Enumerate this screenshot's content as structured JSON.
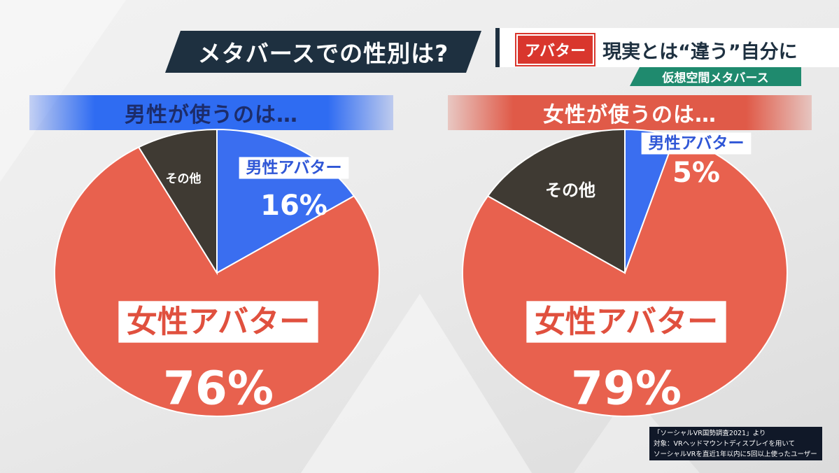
{
  "header": {
    "main_title": "メタバースでの性別は?",
    "topic_tag": "アバター",
    "topic_text": "現実とは“違う”自分に",
    "sub_topic": "仮想空間メタバース"
  },
  "chart_data": [
    {
      "type": "pie",
      "title": "男性が使うのは…",
      "slices": [
        {
          "label": "男性アバター",
          "value": 16,
          "value_label": "16%",
          "color": "#3a6ef0"
        },
        {
          "label": "女性アバター",
          "value": 76,
          "value_label": "76%",
          "color": "#e8614e"
        },
        {
          "label": "その他",
          "value": 8,
          "value_label": "",
          "color": "#3f3a33"
        }
      ]
    },
    {
      "type": "pie",
      "title": "女性が使うのは…",
      "slices": [
        {
          "label": "男性アバター",
          "value": 5,
          "value_label": "5%",
          "color": "#3a6ef0"
        },
        {
          "label": "女性アバター",
          "value": 79,
          "value_label": "79%",
          "color": "#e8614e"
        },
        {
          "label": "その他",
          "value": 16,
          "value_label": "",
          "color": "#3f3a33"
        }
      ]
    }
  ],
  "source": {
    "line1": "「ソーシャルVR国勢調査2021」より",
    "line2": "対象：VRヘッドマウントディスプレイを用いて",
    "line3": "ソーシャルVRを直近1年以内に5回以上使ったユーザー"
  }
}
